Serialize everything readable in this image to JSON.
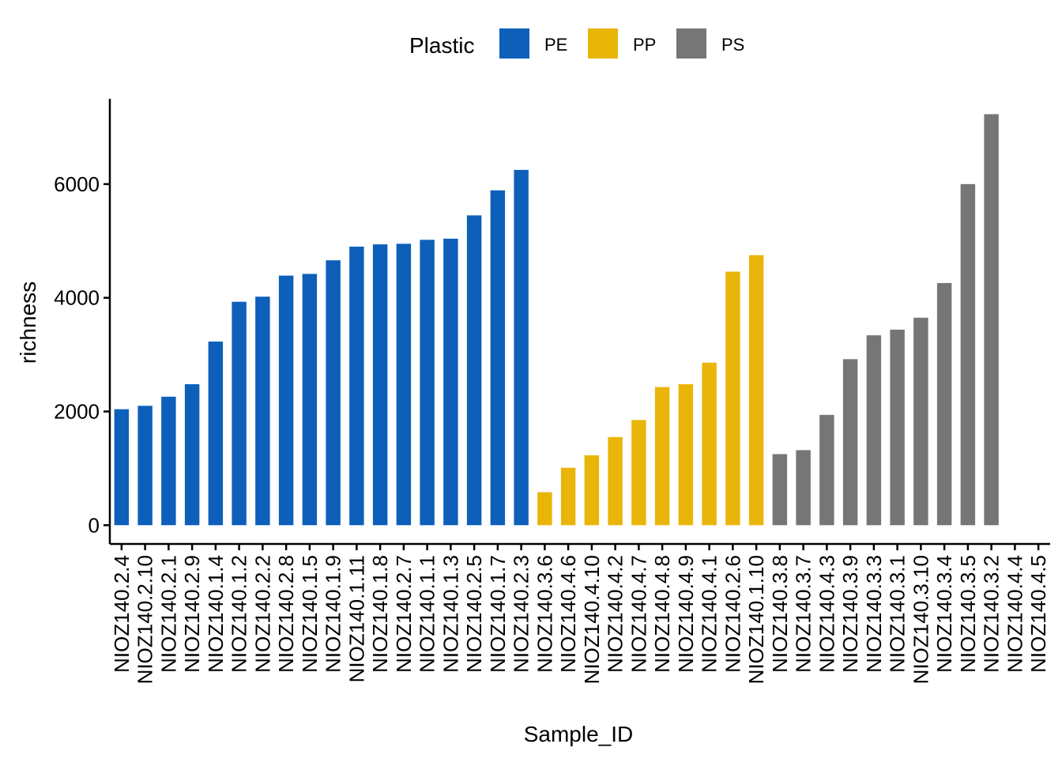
{
  "chart_data": {
    "type": "bar",
    "xlabel": "Sample_ID",
    "ylabel": "richness",
    "ylim": [
      -330,
      7500
    ],
    "yticks": [
      0,
      2000,
      4000,
      6000
    ],
    "ytick_labels": [
      "0",
      "2000",
      "4000",
      "6000"
    ],
    "grid": false,
    "legend": {
      "title": "Plastic",
      "position": "top",
      "items": [
        {
          "label": "PE",
          "color": "#0D5FBA"
        },
        {
          "label": "PP",
          "color": "#EAB509"
        },
        {
          "label": "PS",
          "color": "#767676"
        }
      ]
    },
    "categories": [
      "NIOZ140.2.4",
      "NIOZ140.2.10",
      "NIOZ140.2.1",
      "NIOZ140.2.9",
      "NIOZ140.1.4",
      "NIOZ140.1.2",
      "NIOZ140.2.2",
      "NIOZ140.2.8",
      "NIOZ140.1.5",
      "NIOZ140.1.9",
      "NIOZ140.1.11",
      "NIOZ140.1.8",
      "NIOZ140.2.7",
      "NIOZ140.1.1",
      "NIOZ140.1.3",
      "NIOZ140.2.5",
      "NIOZ140.1.7",
      "NIOZ140.2.3",
      "NIOZ140.3.6",
      "NIOZ140.4.6",
      "NIOZ140.4.10",
      "NIOZ140.4.2",
      "NIOZ140.4.7",
      "NIOZ140.4.8",
      "NIOZ140.4.9",
      "NIOZ140.4.1",
      "NIOZ140.2.6",
      "NIOZ140.1.10",
      "NIOZ140.3.8",
      "NIOZ140.3.7",
      "NIOZ140.4.3",
      "NIOZ140.3.9",
      "NIOZ140.3.3",
      "NIOZ140.3.1",
      "NIOZ140.3.10",
      "NIOZ140.3.4",
      "NIOZ140.3.5",
      "NIOZ140.3.2",
      "NIOZ140.4.4",
      "NIOZ140.4.5"
    ],
    "values": [
      2040,
      2100,
      2260,
      2480,
      3230,
      3930,
      4020,
      4390,
      4420,
      4660,
      4900,
      4940,
      4950,
      5020,
      5040,
      5450,
      5890,
      6250,
      580,
      1010,
      1230,
      1550,
      1850,
      2430,
      2480,
      2860,
      4460,
      4750,
      1250,
      1320,
      1940,
      2920,
      3340,
      3440,
      3650,
      4260,
      6000,
      7230,
      0,
      0
    ],
    "groups": [
      "PE",
      "PE",
      "PE",
      "PE",
      "PE",
      "PE",
      "PE",
      "PE",
      "PE",
      "PE",
      "PE",
      "PE",
      "PE",
      "PE",
      "PE",
      "PE",
      "PE",
      "PE",
      "PP",
      "PP",
      "PP",
      "PP",
      "PP",
      "PP",
      "PP",
      "PP",
      "PP",
      "PP",
      "PS",
      "PS",
      "PS",
      "PS",
      "PS",
      "PS",
      "PS",
      "PS",
      "PS",
      "PS",
      "PS",
      "PS"
    ]
  }
}
